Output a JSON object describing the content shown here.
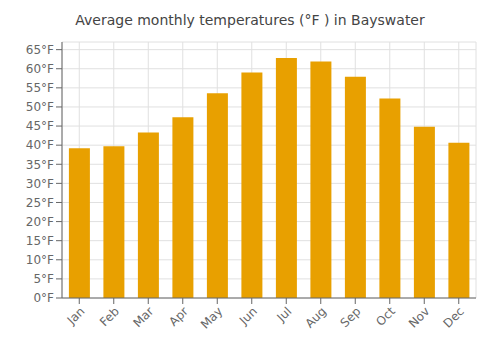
{
  "chart_data": {
    "type": "bar",
    "title": "Average monthly temperatures (°F ) in Bayswater",
    "categories": [
      "Jan",
      "Feb",
      "Mar",
      "Apr",
      "May",
      "Jun",
      "Jul",
      "Aug",
      "Sep",
      "Oct",
      "Nov",
      "Dec"
    ],
    "values": [
      39.2,
      39.7,
      43.3,
      47.3,
      53.6,
      59.0,
      62.8,
      61.9,
      57.9,
      52.2,
      44.8,
      40.6
    ],
    "color": "#E8A000",
    "ylim": [
      0,
      67
    ],
    "yticks": [
      {
        "value": 0,
        "label": "0°F"
      },
      {
        "value": 5,
        "label": "5°F"
      },
      {
        "value": 10,
        "label": "10°F"
      },
      {
        "value": 15,
        "label": "15°F"
      },
      {
        "value": 20,
        "label": "20°F"
      },
      {
        "value": 25,
        "label": "25°F"
      },
      {
        "value": 30,
        "label": "30°F"
      },
      {
        "value": 35,
        "label": "35°F"
      },
      {
        "value": 40,
        "label": "40°F"
      },
      {
        "value": 45,
        "label": "45°F"
      },
      {
        "value": 50,
        "label": "50°F"
      },
      {
        "value": 55,
        "label": "55°F"
      },
      {
        "value": 60,
        "label": "60°F"
      },
      {
        "value": 65,
        "label": "65°F"
      }
    ],
    "grid": true
  }
}
